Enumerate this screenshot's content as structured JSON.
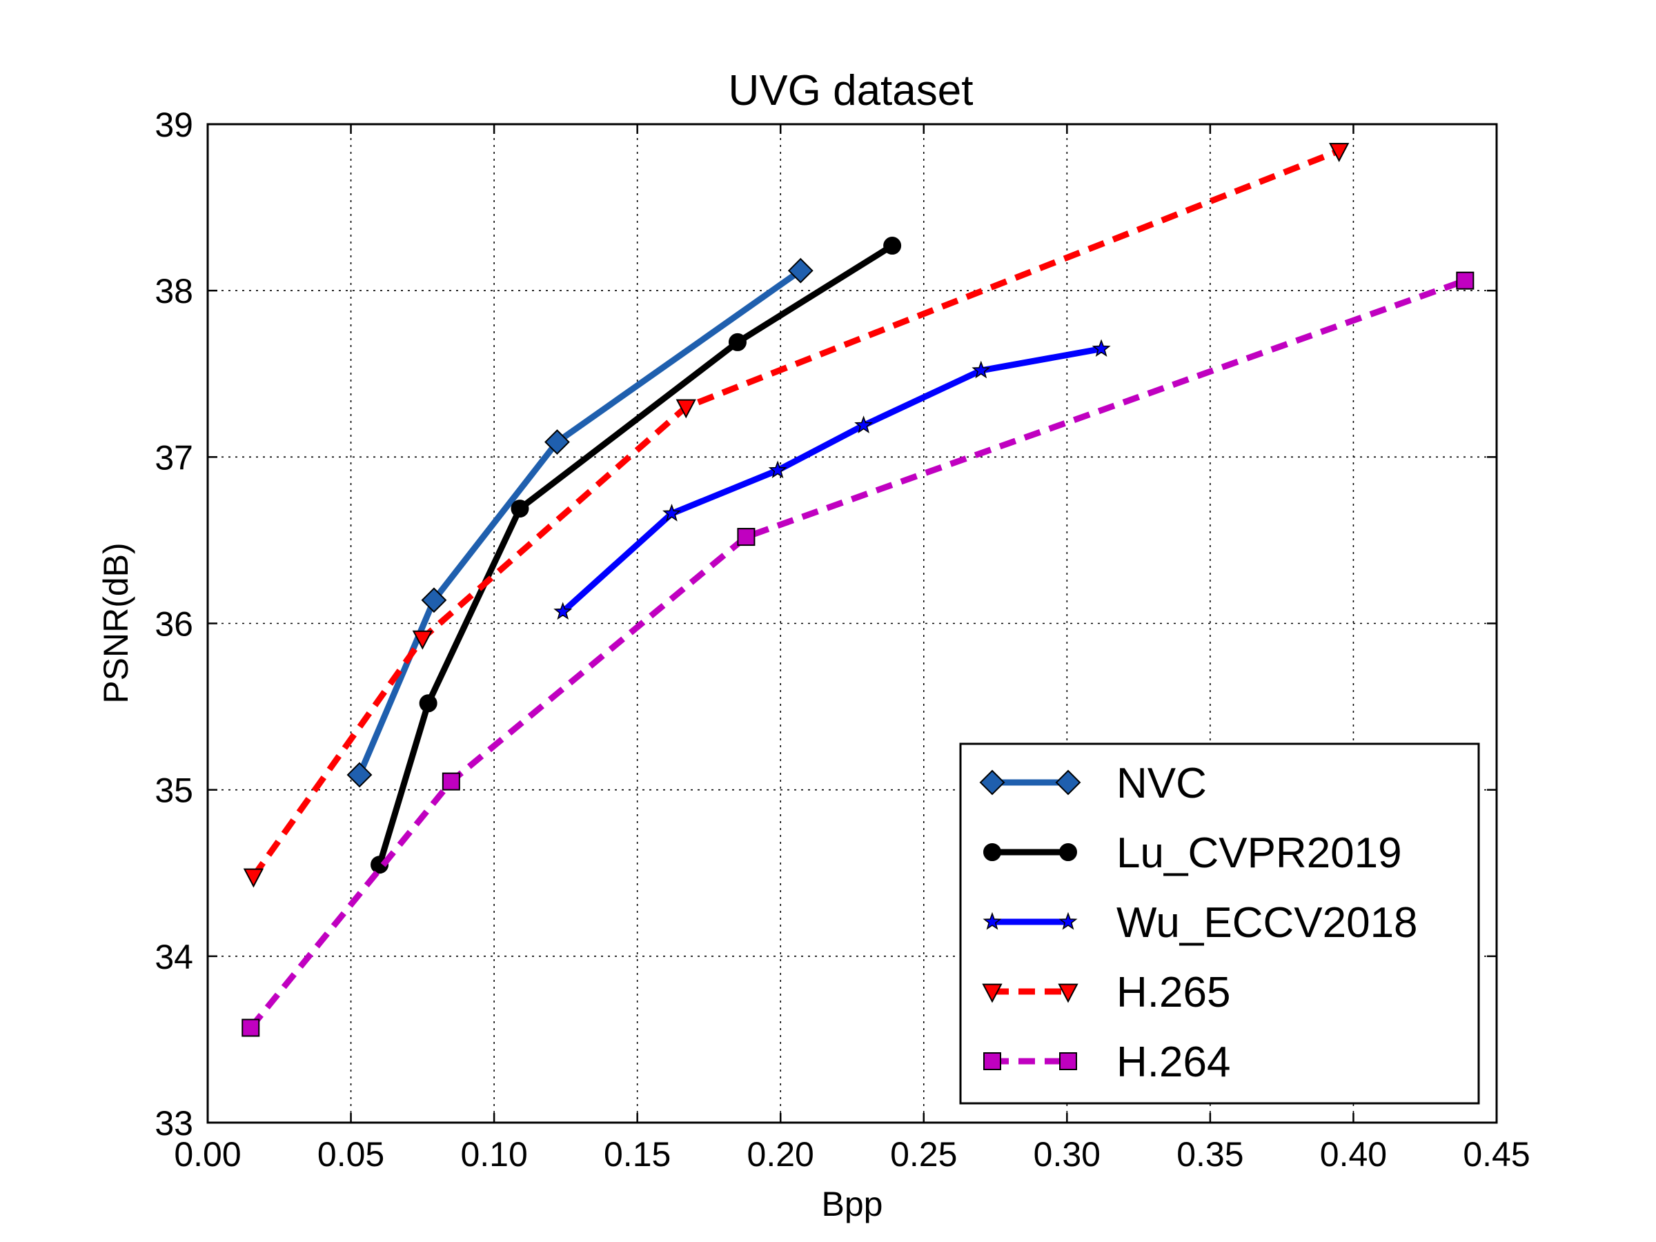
{
  "chart_data": {
    "type": "line",
    "title": "UVG dataset",
    "xlabel": "Bpp",
    "ylabel": "PSNR(dB)",
    "xlim": [
      0.0,
      0.45
    ],
    "ylim": [
      33,
      39
    ],
    "xticks": [
      "0.00",
      "0.05",
      "0.10",
      "0.15",
      "0.20",
      "0.25",
      "0.30",
      "0.35",
      "0.40",
      "0.45"
    ],
    "yticks": [
      "33",
      "34",
      "35",
      "36",
      "37",
      "38",
      "39"
    ],
    "grid": true,
    "legend_position": "lower-right",
    "series": [
      {
        "name": "NVC",
        "color": "#1f5fae",
        "marker": "diamond",
        "dashed": false,
        "x": [
          0.053,
          0.079,
          0.122,
          0.207
        ],
        "y": [
          35.09,
          36.14,
          37.09,
          38.12
        ]
      },
      {
        "name": "Lu_CVPR2019",
        "color": "#000000",
        "marker": "circle",
        "dashed": false,
        "x": [
          0.06,
          0.077,
          0.109,
          0.185,
          0.239
        ],
        "y": [
          34.55,
          35.52,
          36.69,
          37.69,
          38.27
        ]
      },
      {
        "name": "Wu_ECCV2018",
        "color": "#0000ff",
        "marker": "star",
        "dashed": false,
        "x": [
          0.124,
          0.162,
          0.199,
          0.229,
          0.27,
          0.312
        ],
        "y": [
          36.07,
          36.66,
          36.92,
          37.19,
          37.52,
          37.65
        ]
      },
      {
        "name": "H.265",
        "color": "#ff0000",
        "marker": "triangle-down",
        "dashed": true,
        "x": [
          0.016,
          0.075,
          0.167,
          0.395
        ],
        "y": [
          34.48,
          35.91,
          37.3,
          38.84
        ]
      },
      {
        "name": "H.264",
        "color": "#c000c0",
        "marker": "square",
        "dashed": true,
        "x": [
          0.015,
          0.085,
          0.188,
          0.439
        ],
        "y": [
          33.57,
          35.05,
          36.52,
          38.06
        ]
      }
    ]
  }
}
